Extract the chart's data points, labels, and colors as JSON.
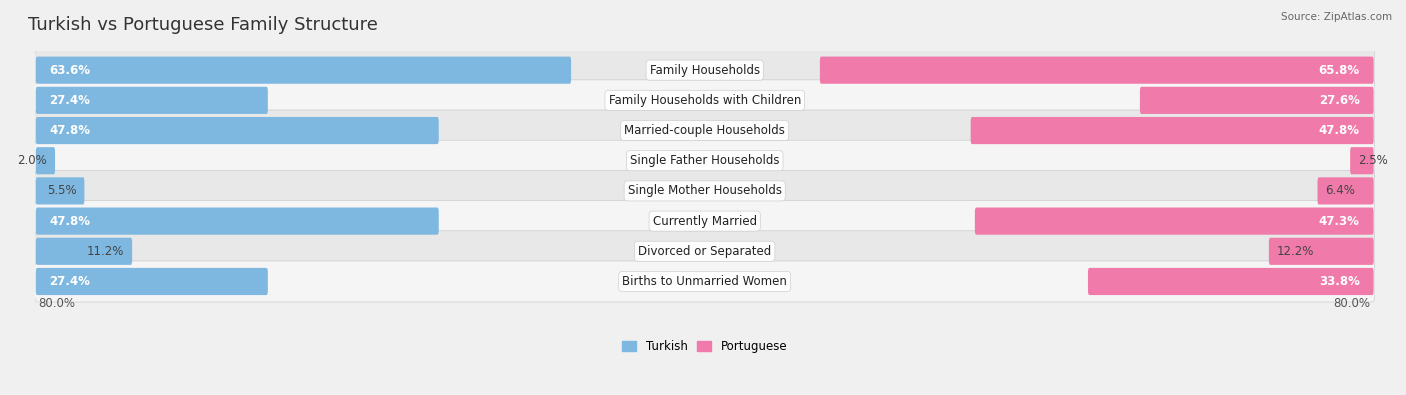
{
  "title": "Turkish vs Portuguese Family Structure",
  "source": "Source: ZipAtlas.com",
  "categories": [
    "Family Households",
    "Family Households with Children",
    "Married-couple Households",
    "Single Father Households",
    "Single Mother Households",
    "Currently Married",
    "Divorced or Separated",
    "Births to Unmarried Women"
  ],
  "turkish_values": [
    63.6,
    27.4,
    47.8,
    2.0,
    5.5,
    47.8,
    11.2,
    27.4
  ],
  "portuguese_values": [
    65.8,
    27.6,
    47.8,
    2.5,
    6.4,
    47.3,
    12.2,
    33.8
  ],
  "turkish_color": "#7eb8e0",
  "portuguese_color": "#f07aaa",
  "turkish_color_light": "#aed4ed",
  "portuguese_color_light": "#f5a8c8",
  "turkish_label": "Turkish",
  "portuguese_label": "Portuguese",
  "max_value": 80.0,
  "axis_label_left": "80.0%",
  "axis_label_right": "80.0%",
  "background_color": "#f0f0f0",
  "row_bg_color": "#e8e8e8",
  "row_bg_white": "#f5f5f5",
  "title_fontsize": 13,
  "cat_fontsize": 8.5,
  "value_fontsize": 8.5,
  "large_threshold": 15.0
}
